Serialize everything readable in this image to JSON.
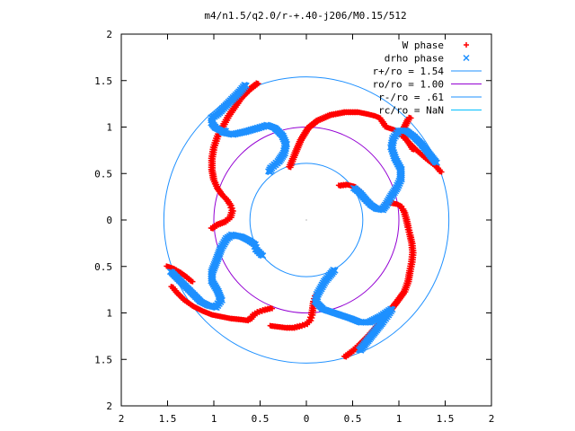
{
  "chart_data": {
    "type": "scatter",
    "title": "m4/n1.5/q2.0/r-+.40-j206/M0.15/512",
    "xlabel": "",
    "ylabel": "",
    "xlim": [
      -2,
      2
    ],
    "ylim": [
      -2,
      2
    ],
    "x_ticks": [
      -2,
      -1.5,
      -1,
      -0.5,
      0,
      0.5,
      1,
      1.5,
      2
    ],
    "x_tick_labels": [
      "2",
      "1.5",
      "1",
      "0.5",
      "0",
      "0.5",
      "1",
      "1.5",
      "2"
    ],
    "y_ticks": [
      2,
      1.5,
      1,
      0.5,
      0,
      -0.5,
      -1,
      -1.5,
      -2
    ],
    "y_tick_labels": [
      "2",
      "1.5",
      "1",
      "0.5",
      "0",
      "0.5",
      "1",
      "1.5",
      "2"
    ],
    "grid": false,
    "legend_position": "top-right",
    "series": [
      {
        "name": "W phase",
        "kind": "points",
        "marker": "plus",
        "color": "#ff0000",
        "arms": [
          {
            "x": [
              -0.53,
              -0.62,
              -0.7,
              -0.77,
              -0.84,
              -0.9,
              -0.96,
              -1.0,
              -1.02,
              -1.02,
              -1.0,
              -0.96,
              -0.91,
              -0.86,
              -0.82,
              -0.8,
              -0.82,
              -0.88,
              -0.96,
              -1.02
            ],
            "y": [
              1.47,
              1.4,
              1.32,
              1.22,
              1.12,
              1.01,
              0.9,
              0.78,
              0.66,
              0.54,
              0.43,
              0.34,
              0.27,
              0.22,
              0.16,
              0.1,
              0.03,
              -0.02,
              -0.05,
              -0.09
            ]
          },
          {
            "x": [
              -0.18,
              -0.12,
              -0.06,
              0.02,
              0.12,
              0.26,
              0.42,
              0.56,
              0.66,
              0.74,
              0.79,
              0.82,
              0.86,
              0.92,
              0.98,
              1.04,
              1.1,
              1.15
            ],
            "y": [
              0.57,
              0.72,
              0.86,
              0.99,
              1.07,
              1.13,
              1.16,
              1.16,
              1.14,
              1.12,
              1.1,
              1.06,
              1.0,
              0.98,
              0.96,
              0.92,
              0.84,
              0.76
            ]
          },
          {
            "x": [
              0.42,
              0.5,
              0.58,
              0.66,
              0.74,
              0.82,
              0.9,
              0.98,
              1.06,
              1.1,
              1.12,
              1.14,
              1.15,
              1.14,
              1.12,
              1.1,
              1.08,
              1.06,
              1.04,
              1.02,
              0.98,
              0.93,
              0.88
            ],
            "y": [
              -1.47,
              -1.41,
              -1.34,
              -1.26,
              -1.17,
              -1.08,
              -0.98,
              -0.88,
              -0.77,
              -0.66,
              -0.55,
              -0.45,
              -0.35,
              -0.25,
              -0.16,
              -0.08,
              0.01,
              0.08,
              0.12,
              0.15,
              0.17,
              0.18,
              0.19
            ]
          },
          {
            "x": [
              1.45,
              1.4,
              1.36,
              1.32,
              1.26,
              1.18,
              1.1,
              1.04,
              1.02,
              1.05,
              1.08,
              1.1,
              1.12
            ],
            "y": [
              0.52,
              0.58,
              0.61,
              0.64,
              0.69,
              0.76,
              0.84,
              0.9,
              0.94,
              0.98,
              1.04,
              1.08,
              1.1
            ]
          },
          {
            "x": [
              0.36,
              0.44,
              0.52,
              0.58,
              0.62,
              0.66
            ],
            "y": [
              0.37,
              0.38,
              0.36,
              0.31,
              0.24,
              0.18
            ]
          },
          {
            "x": [
              -0.38,
              -0.46,
              -0.52,
              -0.57,
              -0.6,
              -0.64,
              -0.72,
              -0.82,
              -0.92,
              -1.02,
              -1.12,
              -1.22,
              -1.32,
              -1.4,
              -1.45
            ],
            "y": [
              -0.95,
              -0.97,
              -0.99,
              -1.02,
              -1.06,
              -1.08,
              -1.07,
              -1.06,
              -1.04,
              -1.02,
              -0.98,
              -0.93,
              -0.86,
              -0.78,
              -0.72
            ]
          },
          {
            "x": [
              -1.5,
              -1.44,
              -1.37,
              -1.3,
              -1.24
            ],
            "y": [
              -0.5,
              -0.52,
              -0.56,
              -0.61,
              -0.66
            ]
          },
          {
            "x": [
              0.1,
              0.08,
              0.07,
              0.06,
              0.04,
              0.0,
              -0.06,
              -0.14,
              -0.22,
              -0.3,
              -0.38
            ],
            "y": [
              -0.82,
              -0.88,
              -0.95,
              -1.02,
              -1.08,
              -1.12,
              -1.14,
              -1.16,
              -1.16,
              -1.15,
              -1.14
            ]
          }
        ]
      },
      {
        "name": "drho phase",
        "kind": "points",
        "marker": "cross",
        "color": "#1e90ff",
        "arms": [
          {
            "x": [
              -0.66,
              -0.72,
              -0.8,
              -0.88,
              -0.96,
              -1.02,
              -1.02,
              -0.98,
              -0.92,
              -0.88,
              -0.9,
              -0.8,
              -0.66,
              -0.52,
              -0.42,
              -0.34,
              -0.26,
              -0.22,
              -0.24,
              -0.3,
              -0.38,
              -0.4
            ],
            "y": [
              1.45,
              1.38,
              1.3,
              1.22,
              1.14,
              1.1,
              1.04,
              0.99,
              0.96,
              0.96,
              0.94,
              0.92,
              0.95,
              0.99,
              1.02,
              0.99,
              0.91,
              0.82,
              0.72,
              0.63,
              0.56,
              0.52
            ]
          },
          {
            "x": [
              1.4,
              1.32,
              1.24,
              1.16,
              1.08,
              1.0,
              0.94,
              0.92,
              0.96,
              1.02,
              1.02,
              0.98,
              0.92,
              0.86,
              0.82,
              0.76,
              0.7,
              0.64,
              0.58,
              0.52
            ],
            "y": [
              0.62,
              0.72,
              0.82,
              0.9,
              0.96,
              0.96,
              0.88,
              0.78,
              0.66,
              0.55,
              0.44,
              0.35,
              0.26,
              0.16,
              0.11,
              0.12,
              0.16,
              0.22,
              0.29,
              0.34
            ]
          },
          {
            "x": [
              0.58,
              0.66,
              0.74,
              0.82,
              0.88,
              0.92,
              0.8,
              0.68,
              0.58,
              0.48,
              0.36,
              0.18,
              0.1,
              0.12,
              0.2,
              0.3
            ],
            "y": [
              -1.4,
              -1.3,
              -1.2,
              -1.1,
              -1.02,
              -0.96,
              -1.04,
              -1.1,
              -1.1,
              -1.06,
              -1.02,
              -0.96,
              -0.88,
              -0.8,
              -0.66,
              -0.54
            ]
          },
          {
            "x": [
              -1.46,
              -1.38,
              -1.3,
              -1.22,
              -1.14,
              -1.06,
              -0.98,
              -0.92,
              -0.96,
              -1.02,
              -1.02,
              -0.98,
              -0.92,
              -0.86,
              -0.8,
              -0.7,
              -0.62,
              -0.56,
              -0.54,
              -0.48
            ],
            "y": [
              -0.56,
              -0.64,
              -0.72,
              -0.8,
              -0.88,
              -0.92,
              -0.94,
              -0.86,
              -0.76,
              -0.66,
              -0.56,
              -0.46,
              -0.3,
              -0.2,
              -0.16,
              -0.18,
              -0.22,
              -0.26,
              -0.32,
              -0.38
            ]
          }
        ]
      },
      {
        "name": "r+/ro = 1.54",
        "kind": "circle",
        "r": 1.54,
        "color": "#1e90ff"
      },
      {
        "name": "ro/ro = 1.00",
        "kind": "circle",
        "r": 1.0,
        "color": "#9400d3"
      },
      {
        "name": "r-/ro = .61",
        "kind": "circle",
        "r": 0.61,
        "color": "#1e90ff"
      },
      {
        "name": "rc/ro = NaN",
        "kind": "circle",
        "r": null,
        "color": "#00bfff"
      }
    ],
    "legend_entries": [
      {
        "label": "W phase",
        "symbol": "plus",
        "color": "#ff0000"
      },
      {
        "label": "drho phase",
        "symbol": "cross",
        "color": "#1e90ff"
      },
      {
        "label": "r+/ro = 1.54",
        "symbol": "line",
        "color": "#1e90ff"
      },
      {
        "label": "ro/ro = 1.00",
        "symbol": "line",
        "color": "#9400d3"
      },
      {
        "label": "r-/ro = .61",
        "symbol": "line",
        "color": "#1e90ff"
      },
      {
        "label": "rc/ro = NaN",
        "symbol": "line",
        "color": "#00bfff"
      }
    ]
  }
}
